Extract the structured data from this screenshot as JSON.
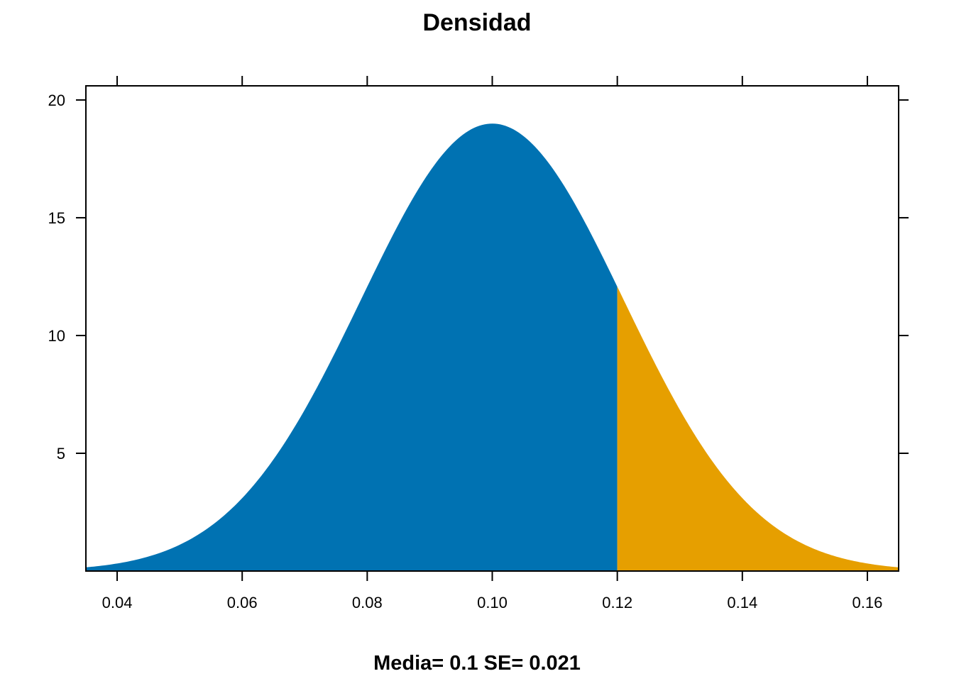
{
  "chart_data": {
    "type": "area",
    "title": "Densidad",
    "xlabel": "Media=  0.1  SE= 0.021",
    "ylabel": "",
    "distribution": "normal",
    "mean": 0.1,
    "sd": 0.021,
    "cutoff": 0.12,
    "xlim": [
      0.035,
      0.165
    ],
    "ylim": [
      0,
      20.6
    ],
    "x_ticks": [
      0.04,
      0.06,
      0.08,
      0.1,
      0.12,
      0.14,
      0.16
    ],
    "x_tick_labels": [
      "0.04",
      "0.06",
      "0.08",
      "0.10",
      "0.12",
      "0.14",
      "0.16"
    ],
    "y_ticks": [
      5,
      10,
      15,
      20
    ],
    "y_tick_labels": [
      "5",
      "10",
      "15",
      "20"
    ],
    "grid": false,
    "series": [
      {
        "region": "lower",
        "color": "#0072B2",
        "x_range": [
          0.035,
          0.12
        ]
      },
      {
        "region": "upper",
        "color": "#E69F00",
        "x_range": [
          0.12,
          0.165
        ]
      }
    ]
  }
}
